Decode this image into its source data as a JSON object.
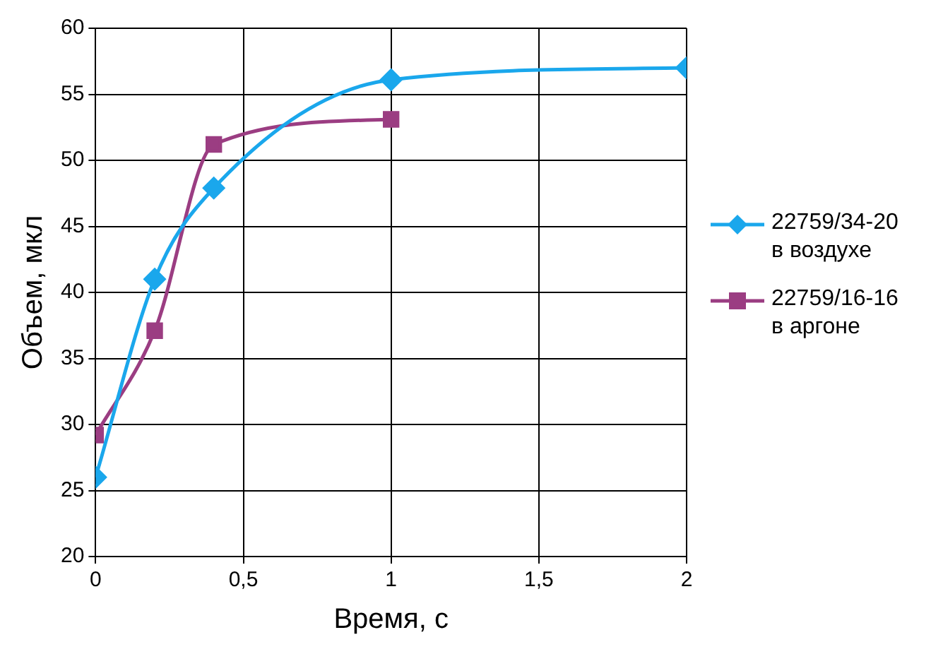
{
  "chart_data": {
    "type": "line",
    "xlabel": "Время, с",
    "ylabel": "Объем, мкл",
    "xlim": [
      0,
      2
    ],
    "xticks": [
      0,
      {
        "value": 0.5,
        "label": "0,5"
      },
      1,
      {
        "value": 1.5,
        "label": "1,5"
      },
      2
    ],
    "ylim": [
      20,
      60
    ],
    "yticks": [
      20,
      25,
      30,
      35,
      40,
      45,
      50,
      55,
      60
    ],
    "grid": true,
    "legend": "right",
    "series": [
      {
        "name": "22759/34-20 в воздухе",
        "color": "#1aa7ec",
        "marker": "diamond",
        "x": [
          0,
          0.2,
          0.4,
          1,
          2
        ],
        "values": [
          26,
          41,
          47.9,
          56.1,
          57
        ]
      },
      {
        "name": "22759/16-16 в аргоне",
        "color": "#9b3d82",
        "marker": "square",
        "x": [
          0,
          0.2,
          0.4,
          1
        ],
        "values": [
          29.2,
          37.1,
          51.2,
          53.1
        ]
      }
    ]
  }
}
